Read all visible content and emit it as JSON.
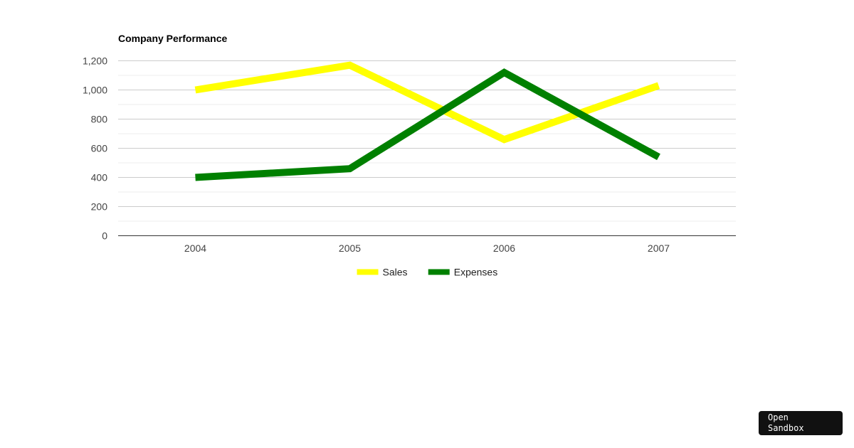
{
  "chart_data": {
    "type": "line",
    "title": "Company Performance",
    "xlabel": "",
    "ylabel": "",
    "categories": [
      "2004",
      "2005",
      "2006",
      "2007"
    ],
    "series": [
      {
        "name": "Sales",
        "values": [
          1000,
          1170,
          660,
          1030
        ],
        "color": "#ffff00"
      },
      {
        "name": "Expenses",
        "values": [
          400,
          460,
          1120,
          540
        ],
        "color": "#008000"
      }
    ],
    "ylim": [
      0,
      1200
    ],
    "yticks": [
      0,
      200,
      400,
      600,
      800,
      1000,
      1200
    ],
    "ytick_labels": [
      "0",
      "200",
      "400",
      "600",
      "800",
      "1,000",
      "1,200"
    ],
    "grid": true,
    "legend_position": "bottom"
  },
  "sandbox_button": {
    "label": "Open Sandbox"
  }
}
